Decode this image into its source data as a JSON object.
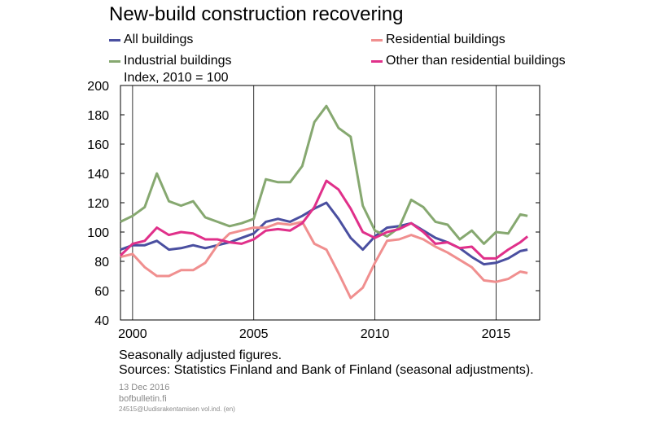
{
  "title": "New-build construction recovering",
  "unit_label": "Index, 2010 = 100",
  "notes": {
    "adjustment": "Seasonally adjusted figures.",
    "sources": "Sources: Statistics Finland and Bank of Finland (seasonal adjustments)."
  },
  "footer": {
    "date": "13 Dec 2016",
    "site": "bofbulletin.fi",
    "code": "24515@Uudisrakentamisen vol.ind. (en)"
  },
  "colors": {
    "all": "#4a4fa0",
    "residential": "#f08f8f",
    "industrial": "#86a870",
    "other": "#e0308a"
  },
  "chart_data": {
    "type": "line",
    "title": "New-build construction recovering",
    "ylabel": "Index, 2010 = 100",
    "xlim": [
      1999.5,
      2016.8
    ],
    "ylim": [
      40,
      200
    ],
    "yticks": [
      40,
      60,
      80,
      100,
      120,
      140,
      160,
      180,
      200
    ],
    "xticks": [
      2000,
      2005,
      2010,
      2015
    ],
    "xtick_labels": [
      "2000",
      "2005",
      "2010",
      "2015"
    ],
    "grid": "vertical lines at 2000, 2005, 2010, 2015",
    "legend_position": "top",
    "x": [
      1999.5,
      2000.0,
      2000.5,
      2001.0,
      2001.5,
      2002.0,
      2002.5,
      2003.0,
      2003.5,
      2004.0,
      2004.5,
      2005.0,
      2005.5,
      2006.0,
      2006.5,
      2007.0,
      2007.5,
      2008.0,
      2008.5,
      2009.0,
      2009.5,
      2010.0,
      2010.5,
      2011.0,
      2011.5,
      2012.0,
      2012.5,
      2013.0,
      2013.5,
      2014.0,
      2014.5,
      2015.0,
      2015.5,
      2016.0,
      2016.3
    ],
    "series": [
      {
        "name": "All buildings",
        "color_key": "all",
        "values": [
          88,
          91,
          91,
          94,
          88,
          89,
          91,
          89,
          91,
          93,
          96,
          99,
          107,
          109,
          107,
          111,
          116,
          120,
          109,
          96,
          88,
          97,
          103,
          104,
          106,
          101,
          96,
          93,
          89,
          83,
          78,
          79,
          82,
          87,
          88
        ]
      },
      {
        "name": "Residential buildings",
        "color_key": "residential",
        "values": [
          83,
          85,
          76,
          70,
          70,
          74,
          74,
          79,
          91,
          99,
          101,
          103,
          103,
          106,
          105,
          107,
          92,
          88,
          72,
          55,
          62,
          79,
          94,
          95,
          98,
          95,
          90,
          86,
          81,
          76,
          67,
          66,
          68,
          73,
          72
        ]
      },
      {
        "name": "Industrial buildings",
        "color_key": "industrial",
        "values": [
          107,
          111,
          117,
          140,
          121,
          118,
          121,
          110,
          107,
          104,
          106,
          109,
          136,
          134,
          134,
          145,
          175,
          186,
          171,
          165,
          118,
          101,
          97,
          103,
          122,
          117,
          107,
          105,
          95,
          101,
          92,
          100,
          99,
          112,
          111
        ]
      },
      {
        "name": "Other than residential buildings",
        "color_key": "other",
        "values": [
          84,
          92,
          94,
          103,
          98,
          100,
          99,
          95,
          95,
          93,
          92,
          95,
          101,
          102,
          101,
          106,
          117,
          135,
          129,
          116,
          100,
          96,
          100,
          102,
          106,
          100,
          92,
          93,
          89,
          90,
          82,
          82,
          88,
          93,
          97
        ]
      }
    ]
  }
}
